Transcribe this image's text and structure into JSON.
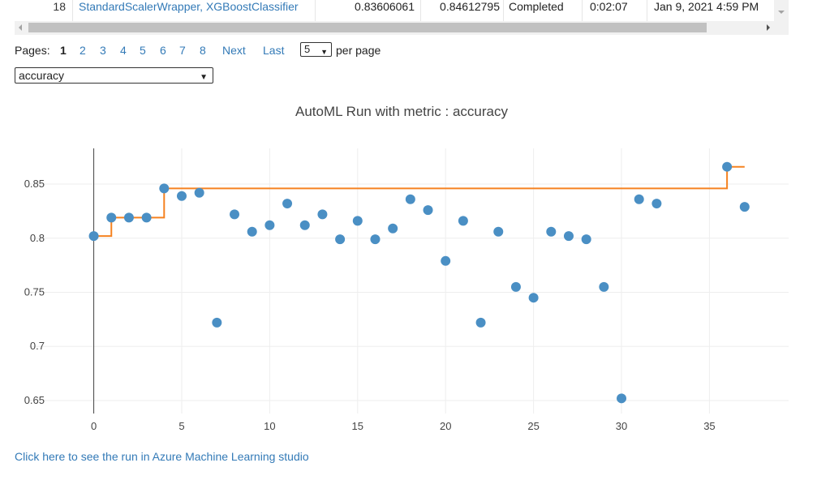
{
  "table": {
    "row": {
      "index": "18",
      "pipeline": "StandardScalerWrapper, XGBoostClassifier",
      "score_1": "0.83606061",
      "score_2": "0.84612795",
      "status": "Completed",
      "duration": "0:02:07",
      "date": "Jan 9, 2021 4:59 PM"
    }
  },
  "pagination": {
    "label": "Pages:",
    "pages": [
      "1",
      "2",
      "3",
      "4",
      "5",
      "6",
      "7",
      "8"
    ],
    "current": "1",
    "next": "Next",
    "last": "Last",
    "per_page_value": "5",
    "per_page_label": "per page"
  },
  "metric_select": {
    "value": "accuracy"
  },
  "chart_data": {
    "type": "scatter",
    "title": "AutoML Run with metric : accuracy",
    "xlabel": "",
    "ylabel": "",
    "xlim": [
      -4.5,
      39.5
    ],
    "ylim": [
      0.638,
      0.883
    ],
    "x_ticks": [
      0,
      5,
      10,
      15,
      20,
      25,
      30,
      35
    ],
    "y_ticks": [
      0.65,
      0.7,
      0.75,
      0.8,
      0.85
    ],
    "y_tick_labels": [
      "0.65",
      "0.7",
      "0.75",
      "0.8",
      "0.85"
    ],
    "grid": true,
    "legend": "none",
    "series": [
      {
        "type": "scatter",
        "color": "#4a8fc4",
        "x": [
          0,
          1,
          2,
          3,
          4,
          5,
          6,
          7,
          8,
          9,
          10,
          11,
          12,
          13,
          14,
          15,
          16,
          17,
          18,
          19,
          20,
          21,
          22,
          23,
          24,
          25,
          26,
          27,
          28,
          29,
          30,
          31,
          32,
          36,
          37
        ],
        "y": [
          0.802,
          0.819,
          0.819,
          0.819,
          0.846,
          0.839,
          0.842,
          0.722,
          0.822,
          0.806,
          0.812,
          0.832,
          0.812,
          0.822,
          0.799,
          0.816,
          0.799,
          0.809,
          0.836,
          0.826,
          0.779,
          0.816,
          0.722,
          0.806,
          0.755,
          0.745,
          0.806,
          0.802,
          0.799,
          0.755,
          0.652,
          0.836,
          0.832,
          0.866,
          0.829
        ]
      },
      {
        "type": "step",
        "color": "#f58220",
        "x": [
          0,
          1,
          4,
          36,
          37
        ],
        "y": [
          0.802,
          0.819,
          0.846,
          0.866,
          0.866
        ]
      }
    ]
  },
  "footer": {
    "studio_link": "Click here to see the run in Azure Machine Learning studio"
  }
}
